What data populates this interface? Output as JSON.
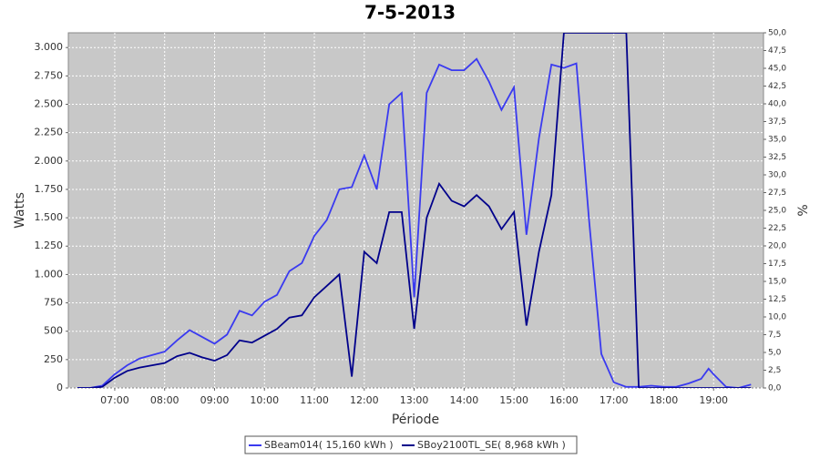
{
  "chart_data": {
    "type": "line",
    "title": "7-5-2013",
    "x_label": "Période",
    "y_label": "Watts",
    "y2_label": "%",
    "x": [
      6.25,
      6.5,
      6.75,
      7.0,
      7.25,
      7.5,
      7.75,
      8.0,
      8.25,
      8.5,
      8.75,
      9.0,
      9.25,
      9.5,
      9.75,
      10.0,
      10.25,
      10.5,
      10.75,
      11.0,
      11.25,
      11.5,
      11.75,
      12.0,
      12.25,
      12.5,
      12.75,
      13.0,
      13.25,
      13.5,
      13.75,
      14.0,
      14.25,
      14.5,
      14.75,
      15.0,
      15.25,
      15.5,
      15.75,
      16.0,
      16.25,
      16.5,
      16.75,
      17.0,
      17.25,
      17.5,
      17.75,
      18.0,
      18.25,
      18.5,
      18.75,
      18.9,
      19.0,
      19.25,
      19.5,
      19.75
    ],
    "series": [
      {
        "name": "SBeam014( 15,160 kWh )",
        "color": "#3a3af0",
        "values": [
          0,
          0,
          20,
          120,
          200,
          260,
          290,
          320,
          420,
          510,
          450,
          390,
          470,
          680,
          640,
          760,
          820,
          1030,
          1100,
          1340,
          1480,
          1750,
          1770,
          2050,
          1750,
          2500,
          2600,
          800,
          2600,
          2850,
          2800,
          2800,
          2900,
          2700,
          2450,
          2650,
          1350,
          2200,
          2850,
          2820,
          2860,
          1500,
          300,
          50,
          10,
          10,
          20,
          10,
          10,
          40,
          80,
          170,
          120,
          10,
          0,
          30
        ]
      },
      {
        "name": "SBoy2100TL_SE( 8,968 kWh )",
        "color": "#00008b",
        "values": [
          0,
          0,
          10,
          90,
          150,
          180,
          200,
          220,
          280,
          310,
          270,
          240,
          290,
          420,
          400,
          460,
          520,
          620,
          640,
          800,
          900,
          1000,
          100,
          1200,
          1100,
          1550,
          1550,
          520,
          1500,
          1800,
          1650,
          1600,
          1700,
          1600,
          1400,
          1550,
          550,
          1200,
          1700,
          3130,
          3130,
          3130,
          3130,
          3130,
          3130,
          0,
          0,
          0,
          0,
          0,
          0,
          0,
          0,
          0,
          0,
          0
        ]
      }
    ],
    "xlim": [
      6.07,
      20.0
    ],
    "xticks": [
      {
        "value": 7,
        "label": "07:00"
      },
      {
        "value": 8,
        "label": "08:00"
      },
      {
        "value": 9,
        "label": "09:00"
      },
      {
        "value": 10,
        "label": "10:00"
      },
      {
        "value": 11,
        "label": "11:00"
      },
      {
        "value": 12,
        "label": "12:00"
      },
      {
        "value": 13,
        "label": "13:00"
      },
      {
        "value": 14,
        "label": "14:00"
      },
      {
        "value": 15,
        "label": "15:00"
      },
      {
        "value": 16,
        "label": "16:00"
      },
      {
        "value": 17,
        "label": "17:00"
      },
      {
        "value": 18,
        "label": "18:00"
      },
      {
        "value": 19,
        "label": "19:00"
      }
    ],
    "ylim": [
      0,
      3130
    ],
    "yticks": [
      0,
      250,
      500,
      750,
      {
        "value": 1000,
        "label": "1.000"
      },
      {
        "value": 1250,
        "label": "1.250"
      },
      {
        "value": 1500,
        "label": "1.500"
      },
      {
        "value": 1750,
        "label": "1.750"
      },
      {
        "value": 2000,
        "label": "2.000"
      },
      {
        "value": 2250,
        "label": "2.250"
      },
      {
        "value": 2500,
        "label": "2.500"
      },
      {
        "value": 2750,
        "label": "2.750"
      },
      {
        "value": 3000,
        "label": "3.000"
      }
    ],
    "y2lim": [
      0,
      50
    ],
    "y2ticks": [
      {
        "value": 0,
        "label": "0,0"
      },
      {
        "value": 2.5,
        "label": "2,5"
      },
      {
        "value": 5,
        "label": "5,0"
      },
      {
        "value": 7.5,
        "label": "7,5"
      },
      {
        "value": 10,
        "label": "10,0"
      },
      {
        "value": 12.5,
        "label": "12,5"
      },
      {
        "value": 15,
        "label": "15,0"
      },
      {
        "value": 17.5,
        "label": "17,5"
      },
      {
        "value": 20,
        "label": "20,0"
      },
      {
        "value": 22.5,
        "label": "22,5"
      },
      {
        "value": 25,
        "label": "25,0"
      },
      {
        "value": 27.5,
        "label": "27,5"
      },
      {
        "value": 30,
        "label": "30,0"
      },
      {
        "value": 32.5,
        "label": "32,5"
      },
      {
        "value": 35,
        "label": "35,0"
      },
      {
        "value": 37.5,
        "label": "37,5"
      },
      {
        "value": 40,
        "label": "40,0"
      },
      {
        "value": 42.5,
        "label": "42,5"
      },
      {
        "value": 45,
        "label": "45,0"
      },
      {
        "value": 47.5,
        "label": "47,5"
      },
      {
        "value": 50,
        "label": "50,0"
      }
    ],
    "grid": true
  }
}
